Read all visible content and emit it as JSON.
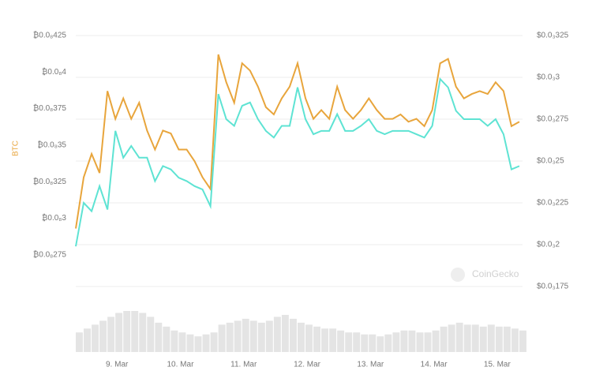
{
  "chart_data": {
    "type": "line",
    "y_axis_label": "BTC",
    "watermark": "CoinGecko",
    "x": [
      8.35,
      8.475,
      8.6,
      8.725,
      8.85,
      8.975,
      9.1,
      9.225,
      9.35,
      9.475,
      9.6,
      9.725,
      9.85,
      9.975,
      10.1,
      10.225,
      10.35,
      10.475,
      10.6,
      10.725,
      10.85,
      10.975,
      11.1,
      11.225,
      11.35,
      11.475,
      11.6,
      11.725,
      11.85,
      11.975,
      12.1,
      12.225,
      12.35,
      12.475,
      12.6,
      12.725,
      12.85,
      12.975,
      13.1,
      13.225,
      13.35,
      13.475,
      13.6,
      13.725,
      13.85,
      13.975,
      14.1,
      14.225,
      14.35,
      14.475,
      14.6,
      14.725,
      14.85,
      14.975,
      15.1,
      15.225,
      15.35
    ],
    "xlim": [
      8.35,
      15.4
    ],
    "xticks": [
      {
        "value": 9,
        "label": "9. Mar"
      },
      {
        "value": 10,
        "label": "10. Mar"
      },
      {
        "value": 11,
        "label": "11. Mar"
      },
      {
        "value": 12,
        "label": "12. Mar"
      },
      {
        "value": 13,
        "label": "13. Mar"
      },
      {
        "value": 14,
        "label": "14. Mar"
      },
      {
        "value": 15,
        "label": "15. Mar"
      }
    ],
    "ylim": [
      2.533e-09,
      4.25e-09
    ],
    "yticks": [
      {
        "value": 4.25e-09,
        "label": "₿0.0₈425"
      },
      {
        "value": 4e-09,
        "label": "₿0.0₈4"
      },
      {
        "value": 3.75e-09,
        "label": "₿0.0₈375"
      },
      {
        "value": 3.5e-09,
        "label": "₿0.0₈35"
      },
      {
        "value": 3.25e-09,
        "label": "₿0.0₈325"
      },
      {
        "value": 3e-09,
        "label": "₿0.0₈3"
      },
      {
        "value": 2.75e-09,
        "label": "₿0.0₈275"
      }
    ],
    "y2lim": [
      0.000175,
      0.000325
    ],
    "y2ticks": [
      {
        "value": 0.000325,
        "label": "$0.0₃325"
      },
      {
        "value": 0.0003,
        "label": "$0.0₃3"
      },
      {
        "value": 0.000275,
        "label": "$0.0₃275"
      },
      {
        "value": 0.00025,
        "label": "$0.0₃25"
      },
      {
        "value": 0.000225,
        "label": "$0.0₃225"
      },
      {
        "value": 0.0002,
        "label": "$0.0₃2"
      },
      {
        "value": 0.000175,
        "label": "$0.0₃175"
      }
    ],
    "grid": true,
    "series": [
      {
        "color": "#e8a53c",
        "values": [
          2.93e-09,
          3.28e-09,
          3.44e-09,
          3.31e-09,
          3.87e-09,
          3.68e-09,
          3.82e-09,
          3.68e-09,
          3.79e-09,
          3.6e-09,
          3.47e-09,
          3.6e-09,
          3.58e-09,
          3.47e-09,
          3.47e-09,
          3.39e-09,
          3.28e-09,
          3.2e-09,
          4.12e-09,
          3.93e-09,
          3.79e-09,
          4.06e-09,
          4.01e-09,
          3.9e-09,
          3.76e-09,
          3.71e-09,
          3.82e-09,
          3.9e-09,
          4.06e-09,
          3.82e-09,
          3.68e-09,
          3.74e-09,
          3.68e-09,
          3.9e-09,
          3.74e-09,
          3.68e-09,
          3.74e-09,
          3.82e-09,
          3.74e-09,
          3.68e-09,
          3.68e-09,
          3.71e-09,
          3.66e-09,
          3.68e-09,
          3.63e-09,
          3.74e-09,
          4.06e-09,
          4.09e-09,
          3.9e-09,
          3.82e-09,
          3.85e-09,
          3.87e-09,
          3.85e-09,
          3.93e-09,
          3.87e-09,
          3.63e-09,
          3.66e-09
        ]
      },
      {
        "color": "#5ee3d3",
        "axis": "y2",
        "values": [
          0.000199,
          0.000225,
          0.00022,
          0.000235,
          0.000221,
          0.000268,
          0.000252,
          0.000259,
          0.000252,
          0.000252,
          0.000238,
          0.000247,
          0.000245,
          0.00024,
          0.000238,
          0.000235,
          0.000233,
          0.000223,
          0.00029,
          0.000275,
          0.000271,
          0.000283,
          0.000285,
          0.000275,
          0.000268,
          0.000264,
          0.000271,
          0.000271,
          0.000294,
          0.000275,
          0.000266,
          0.000268,
          0.000268,
          0.000278,
          0.000268,
          0.000268,
          0.000271,
          0.000275,
          0.000268,
          0.000266,
          0.000268,
          0.000268,
          0.000268,
          0.000266,
          0.000264,
          0.000271,
          0.000299,
          0.000294,
          0.00028,
          0.000275,
          0.000275,
          0.000275,
          0.000271,
          0.000275,
          0.000266,
          0.000245,
          0.000247
        ]
      }
    ],
    "volume": {
      "color": "#e4e4e4",
      "values": [
        20,
        24,
        28,
        32,
        36,
        40,
        42,
        42,
        40,
        36,
        30,
        26,
        22,
        20,
        18,
        16,
        18,
        20,
        28,
        30,
        32,
        34,
        32,
        30,
        32,
        36,
        38,
        34,
        30,
        28,
        26,
        24,
        24,
        22,
        20,
        20,
        18,
        18,
        16,
        18,
        20,
        22,
        22,
        20,
        20,
        22,
        26,
        28,
        30,
        28,
        28,
        26,
        28,
        26,
        26,
        24,
        22
      ]
    }
  }
}
